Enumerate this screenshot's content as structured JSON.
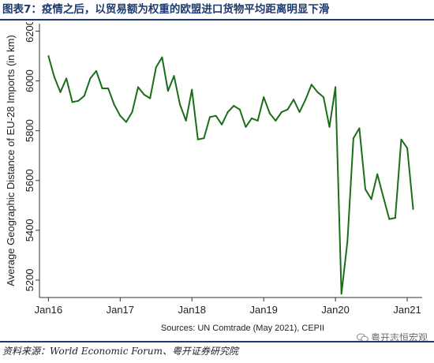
{
  "header": {
    "figure_title": "图表7：疫情之后，以贸易额为权重的欧盟进口货物平均距离明显下滑"
  },
  "footer": {
    "source_text": "资料来源：World Economic Forum、粤开证券研究院"
  },
  "watermark": {
    "text": "粤开志恒宏观",
    "icon": "wechat-icon"
  },
  "chart_data": {
    "type": "line",
    "ylabel": "Average Geographic Distance of EU-28 Imports (in km)",
    "source_note": "Sources: UN Comtrade (May 2021), CEPII",
    "ylim": [
      5130,
      6230
    ],
    "xlim": [
      -1.5,
      62.5
    ],
    "yticks": [
      5200,
      5400,
      5600,
      5800,
      6000,
      6200
    ],
    "xticks": [
      {
        "label": "Jan16",
        "index": 0
      },
      {
        "label": "Jan17",
        "index": 12
      },
      {
        "label": "Jan18",
        "index": 24
      },
      {
        "label": "Jan19",
        "index": 36
      },
      {
        "label": "Jan20",
        "index": 48
      },
      {
        "label": "Jan21",
        "index": 60
      }
    ],
    "grid": false,
    "line_color": "#1a6e1a",
    "series": [
      {
        "values": [
          6100,
          6015,
          5955,
          6010,
          5915,
          5920,
          5940,
          6010,
          6040,
          5970,
          5970,
          5905,
          5860,
          5835,
          5875,
          5975,
          5945,
          5930,
          6055,
          6095,
          5960,
          6020,
          5905,
          5840,
          5965,
          5765,
          5770,
          5855,
          5860,
          5825,
          5875,
          5900,
          5885,
          5815,
          5850,
          5840,
          5935,
          5870,
          5840,
          5875,
          5885,
          5925,
          5875,
          5925,
          5985,
          5955,
          5935,
          5815,
          5975,
          5145,
          5355,
          5770,
          5810,
          5565,
          5525,
          5625,
          5535,
          5445,
          5450,
          5765,
          5730,
          5485
        ]
      }
    ]
  }
}
